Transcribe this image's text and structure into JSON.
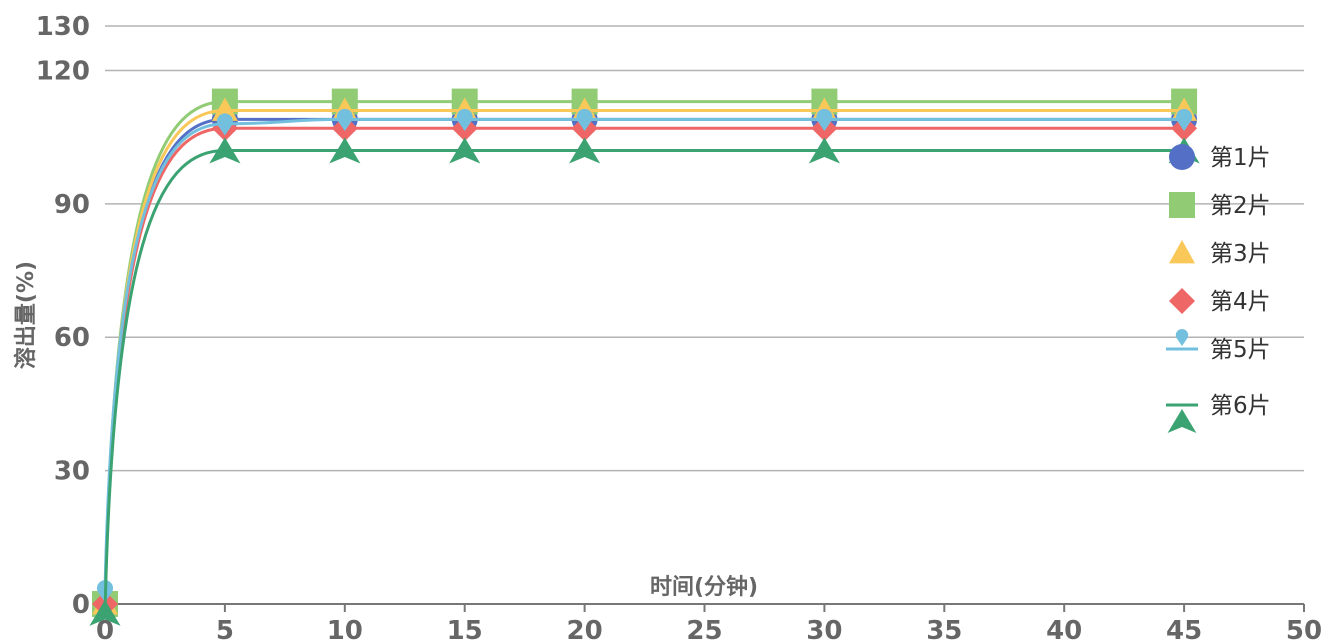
{
  "chart_data": {
    "type": "line",
    "title": "",
    "xlabel": "时间(分钟)",
    "ylabel": "溶出量(%)",
    "xlim": [
      0,
      50
    ],
    "ylim": [
      0,
      130
    ],
    "x_ticks": [
      0,
      5,
      10,
      15,
      20,
      25,
      30,
      35,
      40,
      45,
      50
    ],
    "y_ticks": [
      0,
      30,
      60,
      90,
      120,
      130
    ],
    "grid": true,
    "legend_position": "right",
    "x": [
      0,
      5,
      10,
      15,
      20,
      30,
      45
    ],
    "series": [
      {
        "name": "第1片",
        "color": "#5470c6",
        "marker": "circle",
        "values": [
          0,
          109,
          109,
          109,
          109,
          109,
          109
        ]
      },
      {
        "name": "第2片",
        "color": "#91cc75",
        "marker": "square",
        "values": [
          0,
          113,
          113,
          113,
          113,
          113,
          113
        ]
      },
      {
        "name": "第3片",
        "color": "#fac858",
        "marker": "triangle",
        "values": [
          0,
          111,
          111,
          111,
          111,
          111,
          111
        ]
      },
      {
        "name": "第4片",
        "color": "#ee6666",
        "marker": "diamond",
        "values": [
          0,
          107,
          107,
          107,
          107,
          107,
          107
        ]
      },
      {
        "name": "第5片",
        "color": "#73c0de",
        "marker": "pin",
        "values": [
          3,
          108,
          109,
          109,
          109,
          109,
          109
        ]
      },
      {
        "name": "第6片",
        "color": "#3ba272",
        "marker": "arrow",
        "values": [
          -2,
          102,
          102,
          102,
          102,
          102,
          102
        ]
      }
    ]
  }
}
